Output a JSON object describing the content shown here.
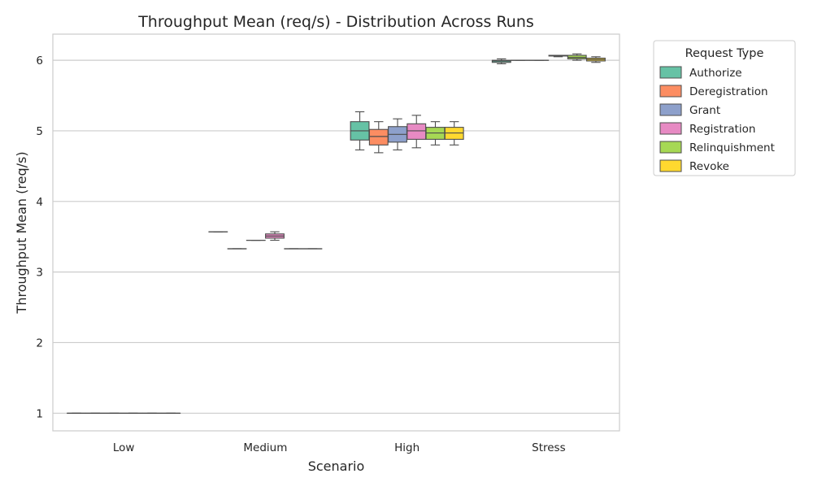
{
  "chart_data": {
    "type": "box",
    "title": "Throughput Mean (req/s) - Distribution Across Runs",
    "xlabel": "Scenario",
    "ylabel": "Throughput Mean (req/s)",
    "categories": [
      "Low",
      "Medium",
      "High",
      "Stress"
    ],
    "ylim": [
      0.75,
      6.37
    ],
    "yticks": [
      1,
      2,
      3,
      4,
      5,
      6
    ],
    "grid": "horizontal",
    "legend": {
      "title": "Request Type",
      "placement": "outside-right"
    },
    "series": [
      {
        "name": "Authorize",
        "color": "#66c2a5",
        "boxes": [
          {
            "min": 1.0,
            "q1": 1.0,
            "median": 1.0,
            "q3": 1.0,
            "max": 1.0
          },
          {
            "min": 3.57,
            "q1": 3.57,
            "median": 3.57,
            "q3": 3.57,
            "max": 3.57
          },
          {
            "min": 4.73,
            "q1": 4.87,
            "median": 5.0,
            "q3": 5.13,
            "max": 5.27
          },
          {
            "min": 5.95,
            "q1": 5.97,
            "median": 5.99,
            "q3": 6.0,
            "max": 6.02
          }
        ]
      },
      {
        "name": "Deregistration",
        "color": "#fc8d62",
        "boxes": [
          {
            "min": 1.0,
            "q1": 1.0,
            "median": 1.0,
            "q3": 1.0,
            "max": 1.0
          },
          {
            "min": 3.33,
            "q1": 3.33,
            "median": 3.33,
            "q3": 3.33,
            "max": 3.33
          },
          {
            "min": 4.69,
            "q1": 4.8,
            "median": 4.92,
            "q3": 5.02,
            "max": 5.13
          },
          {
            "min": 6.0,
            "q1": 6.0,
            "median": 6.0,
            "q3": 6.0,
            "max": 6.0
          }
        ]
      },
      {
        "name": "Grant",
        "color": "#8da0cb",
        "boxes": [
          {
            "min": 1.0,
            "q1": 1.0,
            "median": 1.0,
            "q3": 1.0,
            "max": 1.0
          },
          {
            "min": 3.45,
            "q1": 3.45,
            "median": 3.45,
            "q3": 3.45,
            "max": 3.45
          },
          {
            "min": 4.73,
            "q1": 4.84,
            "median": 4.95,
            "q3": 5.06,
            "max": 5.17
          },
          {
            "min": 6.0,
            "q1": 6.0,
            "median": 6.0,
            "q3": 6.0,
            "max": 6.0
          }
        ]
      },
      {
        "name": "Registration",
        "color": "#e78ac3",
        "boxes": [
          {
            "min": 1.0,
            "q1": 1.0,
            "median": 1.0,
            "q3": 1.0,
            "max": 1.0
          },
          {
            "min": 3.45,
            "q1": 3.48,
            "median": 3.51,
            "q3": 3.54,
            "max": 3.57
          },
          {
            "min": 4.76,
            "q1": 4.88,
            "median": 5.0,
            "q3": 5.1,
            "max": 5.22
          },
          {
            "min": 6.05,
            "q1": 6.06,
            "median": 6.07,
            "q3": 6.07,
            "max": 6.07
          }
        ]
      },
      {
        "name": "Relinquishment",
        "color": "#a6d854",
        "boxes": [
          {
            "min": 1.0,
            "q1": 1.0,
            "median": 1.0,
            "q3": 1.0,
            "max": 1.0
          },
          {
            "min": 3.33,
            "q1": 3.33,
            "median": 3.33,
            "q3": 3.33,
            "max": 3.33
          },
          {
            "min": 4.8,
            "q1": 4.88,
            "median": 4.97,
            "q3": 5.05,
            "max": 5.13
          },
          {
            "min": 6.0,
            "q1": 6.02,
            "median": 6.04,
            "q3": 6.07,
            "max": 6.09
          }
        ]
      },
      {
        "name": "Revoke",
        "color": "#ffd92f",
        "boxes": [
          {
            "min": 1.0,
            "q1": 1.0,
            "median": 1.0,
            "q3": 1.0,
            "max": 1.0
          },
          {
            "min": 3.33,
            "q1": 3.33,
            "median": 3.33,
            "q3": 3.33,
            "max": 3.33
          },
          {
            "min": 4.8,
            "q1": 4.88,
            "median": 4.97,
            "q3": 5.05,
            "max": 5.13
          },
          {
            "min": 5.97,
            "q1": 5.99,
            "median": 6.01,
            "q3": 6.03,
            "max": 6.05
          }
        ]
      }
    ]
  }
}
